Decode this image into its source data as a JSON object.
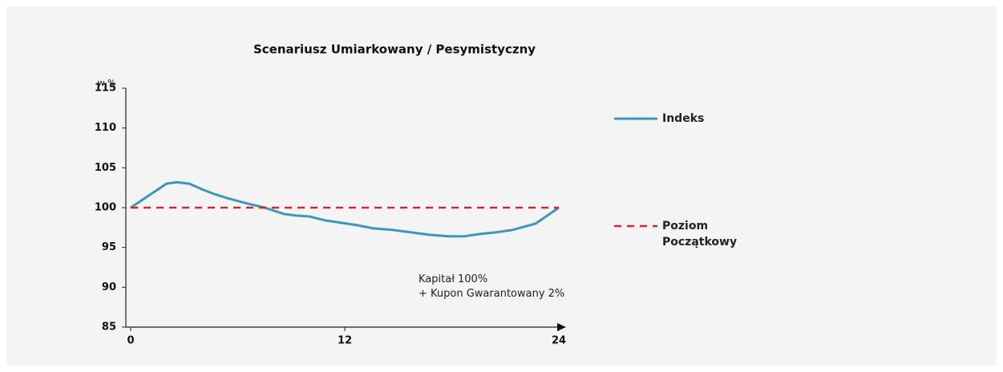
{
  "chart_data": {
    "type": "line",
    "title": "Scenariusz  Umiarkowany / Pesymistyczny",
    "y_label": "w %",
    "annotation": "Kapitał 100%\n+ Kupon Gwarantowany 2%",
    "xlim": [
      0,
      24
    ],
    "xticks": [
      0,
      12,
      24
    ],
    "ylim": [
      85,
      115
    ],
    "yticks": [
      85,
      90,
      95,
      100,
      105,
      110,
      115
    ],
    "series": [
      {
        "name": "Indeks",
        "color": "#3d98b8",
        "dash": false,
        "x": [
          0,
          2,
          2.6,
          3.3,
          4,
          4.7,
          5.4,
          6.4,
          7.5,
          8.6,
          9.3,
          10,
          10.9,
          11.8,
          12.7,
          13.6,
          14.7,
          15.7,
          16.7,
          17.8,
          18.7,
          19.6,
          20.5,
          21.4,
          22.7,
          24
        ],
        "values": [
          100,
          103,
          103.2,
          103,
          102.3,
          101.7,
          101.2,
          100.6,
          100,
          99.2,
          99,
          98.9,
          98.4,
          98.1,
          97.8,
          97.4,
          97.2,
          96.9,
          96.6,
          96.4,
          96.4,
          96.7,
          96.9,
          97.2,
          98,
          100
        ]
      },
      {
        "name": "Poziom Początkowy",
        "color": "#d9262c",
        "dash": true,
        "x": [
          0,
          24
        ],
        "values": [
          100,
          100
        ]
      }
    ]
  }
}
